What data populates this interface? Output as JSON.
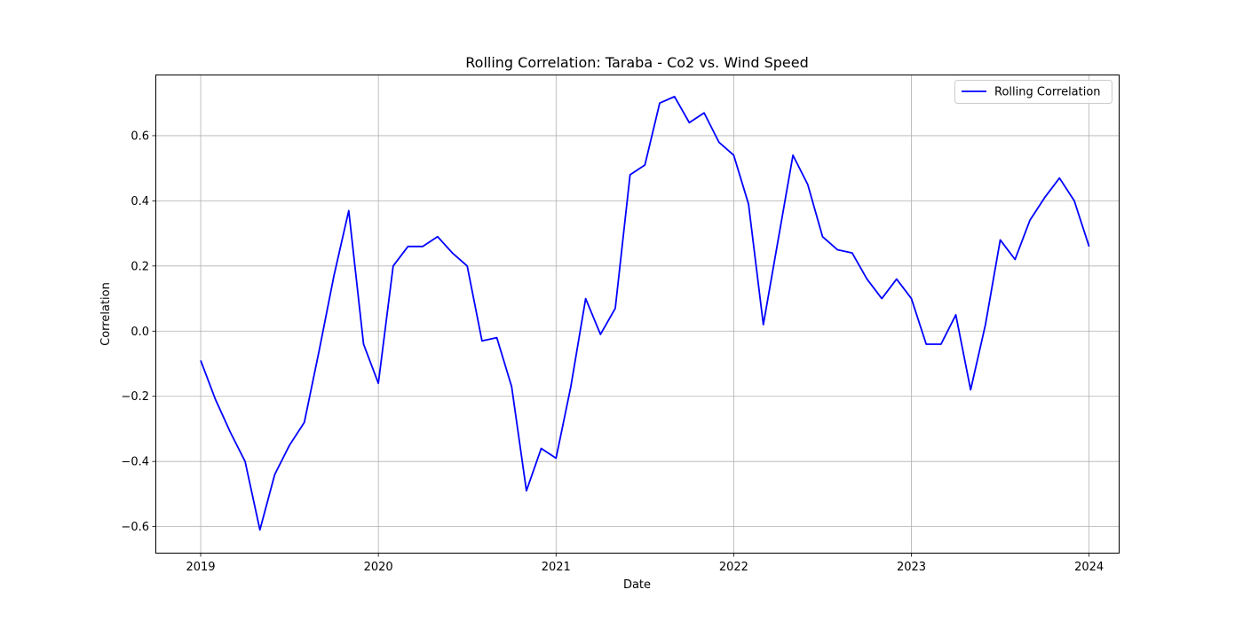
{
  "chart_data": {
    "type": "line",
    "title": "Rolling Correlation: Taraba - Co2 vs. Wind Speed",
    "xlabel": "Date",
    "ylabel": "Correlation",
    "xlim": [
      "2018-10-01",
      "2024-03-01"
    ],
    "ylim": [
      -0.68,
      0.785
    ],
    "grid": true,
    "legend_position": "top-right",
    "x_ticks": [
      "2019",
      "2020",
      "2021",
      "2022",
      "2023",
      "2024"
    ],
    "y_ticks": [
      -0.6,
      -0.4,
      -0.2,
      0.0,
      0.2,
      0.4,
      0.6
    ],
    "y_tick_labels": [
      "−0.6",
      "−0.4",
      "−0.2",
      "0.0",
      "0.2",
      "0.4",
      "0.6"
    ],
    "series": [
      {
        "name": "Rolling Correlation",
        "color": "#0000ff",
        "x": [
          "2019-01",
          "2019-02",
          "2019-03",
          "2019-04",
          "2019-05",
          "2019-06",
          "2019-07",
          "2019-08",
          "2019-09",
          "2019-10",
          "2019-11",
          "2019-12",
          "2020-01",
          "2020-02",
          "2020-03",
          "2020-04",
          "2020-05",
          "2020-06",
          "2020-07",
          "2020-08",
          "2020-09",
          "2020-10",
          "2020-11",
          "2020-12",
          "2021-01",
          "2021-02",
          "2021-03",
          "2021-04",
          "2021-05",
          "2021-06",
          "2021-07",
          "2021-08",
          "2021-09",
          "2021-10",
          "2021-11",
          "2021-12",
          "2022-01",
          "2022-02",
          "2022-03",
          "2022-04",
          "2022-05",
          "2022-06",
          "2022-07",
          "2022-08",
          "2022-09",
          "2022-10",
          "2022-11",
          "2022-12",
          "2023-01",
          "2023-02",
          "2023-03",
          "2023-04",
          "2023-05",
          "2023-06",
          "2023-07",
          "2023-08",
          "2023-09",
          "2023-10",
          "2023-11",
          "2023-12",
          "2024-01"
        ],
        "y": [
          -0.09,
          -0.21,
          -0.31,
          -0.4,
          -0.61,
          -0.44,
          -0.35,
          -0.28,
          -0.06,
          0.17,
          0.37,
          -0.04,
          -0.16,
          0.2,
          0.26,
          0.26,
          0.29,
          0.24,
          0.2,
          -0.03,
          -0.02,
          -0.17,
          -0.49,
          -0.36,
          -0.39,
          -0.17,
          0.1,
          -0.01,
          0.07,
          0.48,
          0.51,
          0.7,
          0.72,
          0.64,
          0.67,
          0.58,
          0.54,
          0.39,
          0.02,
          0.28,
          0.54,
          0.45,
          0.29,
          0.25,
          0.24,
          0.16,
          0.1,
          0.16,
          0.1,
          -0.04,
          -0.04,
          0.05,
          -0.18,
          0.02,
          0.28,
          0.22,
          0.34,
          0.41,
          0.47,
          0.4,
          0.26
        ]
      }
    ]
  }
}
